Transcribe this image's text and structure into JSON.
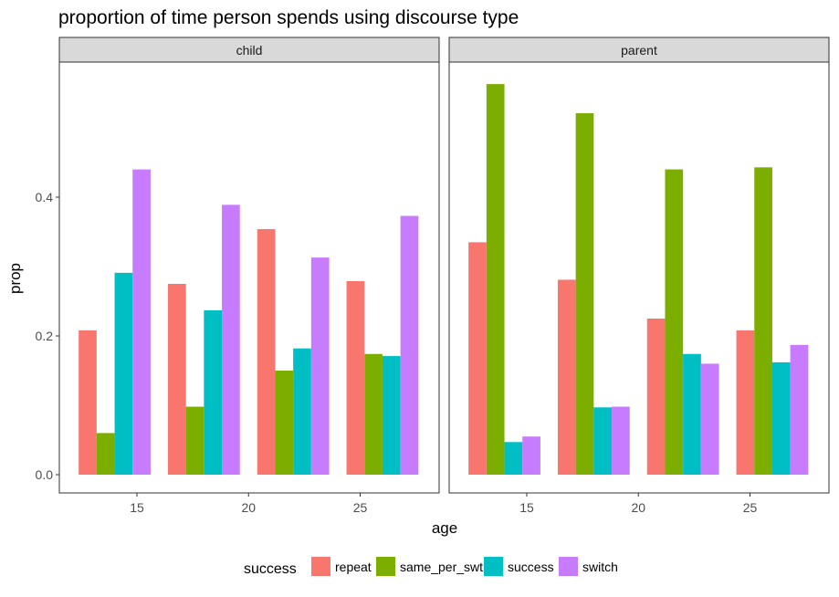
{
  "chart_data": {
    "type": "bar",
    "title": "proportion of time person spends using discourse type",
    "xlabel": "age",
    "ylabel": "prop",
    "ylim": [
      0,
      0.6
    ],
    "yticks": [
      0.0,
      0.2,
      0.4
    ],
    "ytick_labels": [
      "0.0",
      "0.2",
      "0.4"
    ],
    "xlim": [
      11.5,
      28.5
    ],
    "xticks": [
      15,
      20,
      25
    ],
    "xtick_labels": [
      "15",
      "20",
      "25"
    ],
    "bar_group_x": [
      14,
      18,
      22,
      26
    ],
    "grid": false,
    "legend_title": "success",
    "legend_position": "bottom",
    "series": [
      {
        "name": "repeat",
        "color": "#F8766D"
      },
      {
        "name": "same_per_swtich",
        "color": "#7CAE00"
      },
      {
        "name": "success",
        "color": "#00BFC4"
      },
      {
        "name": "switch",
        "color": "#C77CFF"
      }
    ],
    "panels": [
      {
        "strip_label": "child",
        "values": {
          "repeat": [
            0.208,
            0.275,
            0.354,
            0.279
          ],
          "same_per_swtich": [
            0.06,
            0.098,
            0.15,
            0.174
          ],
          "success": [
            0.291,
            0.237,
            0.182,
            0.171
          ],
          "switch": [
            0.44,
            0.389,
            0.313,
            0.373
          ]
        }
      },
      {
        "strip_label": "parent",
        "values": {
          "repeat": [
            0.335,
            0.281,
            0.225,
            0.208
          ],
          "same_per_swtich": [
            0.563,
            0.521,
            0.44,
            0.443
          ],
          "success": [
            0.047,
            0.097,
            0.174,
            0.162
          ],
          "switch": [
            0.055,
            0.098,
            0.16,
            0.187
          ]
        }
      }
    ]
  }
}
